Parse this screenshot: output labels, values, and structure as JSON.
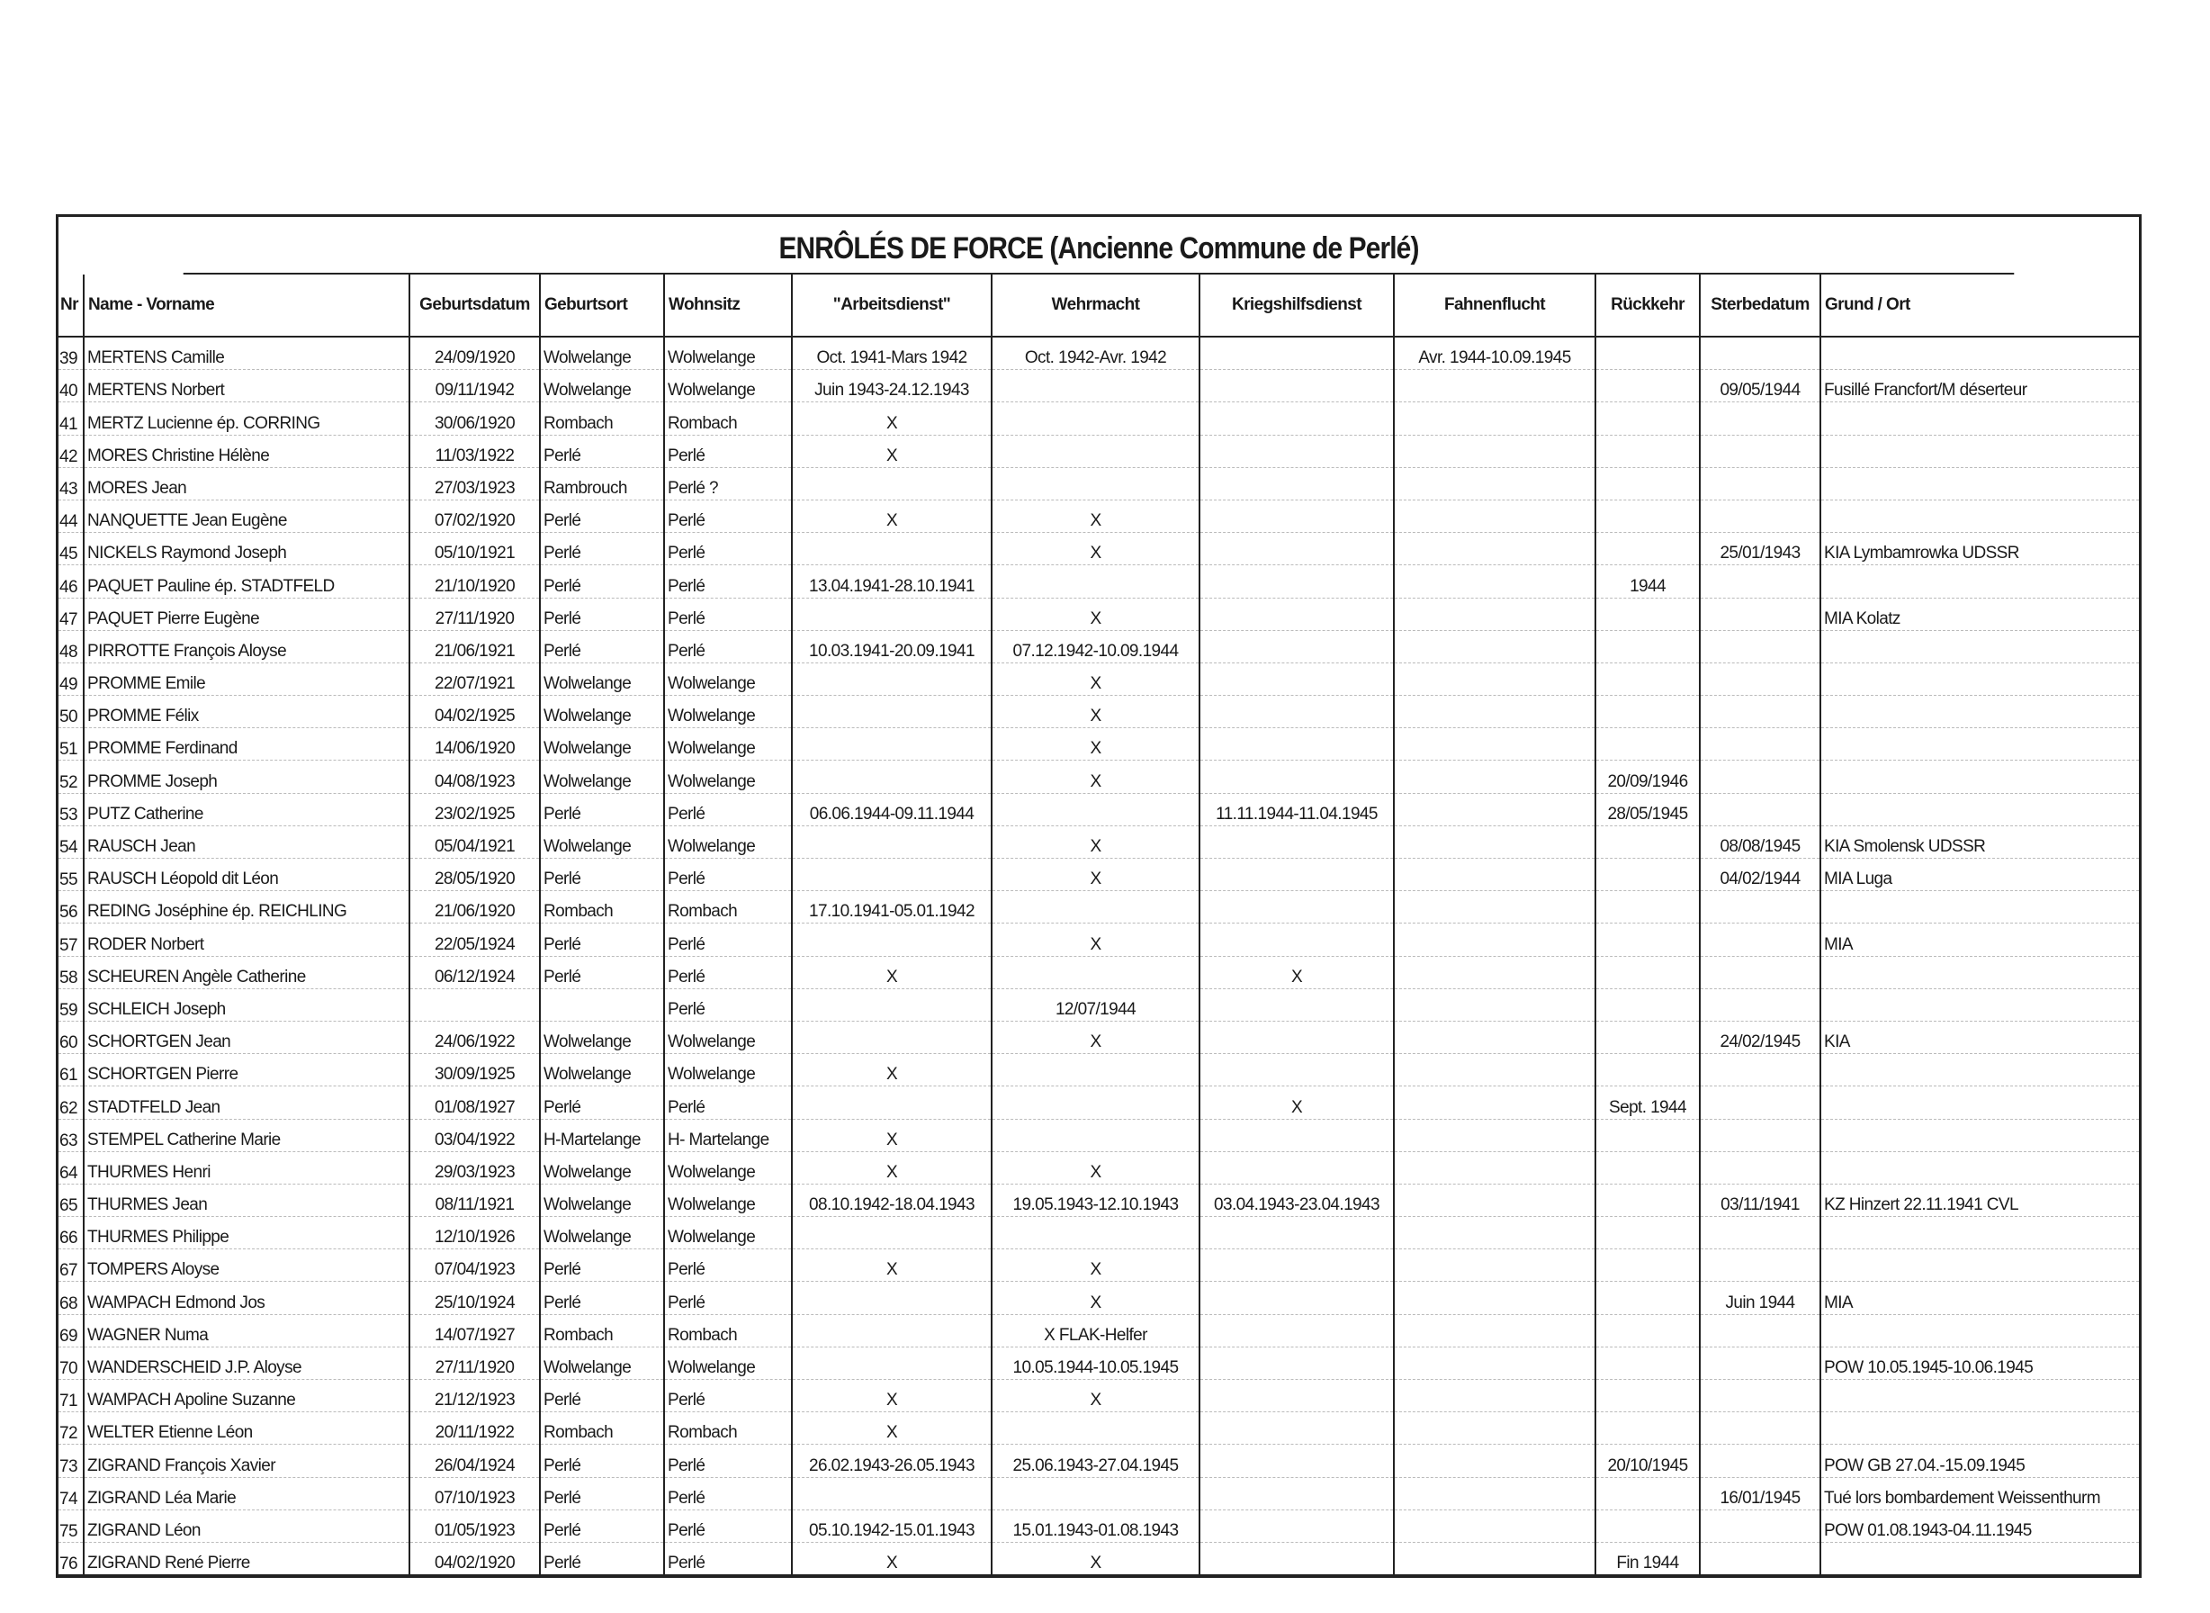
{
  "title": "ENRÔLÉS DE FORCE  (Ancienne Commune de Perlé)",
  "columns": [
    "Nr",
    "Name - Vorname",
    "Geburtsdatum",
    "Geburtsort",
    "Wohnsitz",
    "\"Arbeitsdienst\"",
    "Wehrmacht",
    "Kriegshilfsdienst",
    "Fahnenflucht",
    "Rückkehr",
    "Sterbedatum",
    "Grund / Ort"
  ],
  "rows": [
    [
      "39",
      "MERTENS Camille",
      "24/09/1920",
      "Wolwelange",
      "Wolwelange",
      "Oct. 1941-Mars 1942",
      "Oct. 1942-Avr. 1942",
      "",
      "Avr. 1944-10.09.1945",
      "",
      "",
      ""
    ],
    [
      "40",
      "MERTENS Norbert",
      "09/11/1942",
      "Wolwelange",
      "Wolwelange",
      "Juin 1943-24.12.1943",
      "",
      "",
      "",
      "",
      "09/05/1944",
      "Fusillé Francfort/M déserteur"
    ],
    [
      "41",
      "MERTZ Lucienne ép. CORRING",
      "30/06/1920",
      "Rombach",
      "Rombach",
      "X",
      "",
      "",
      "",
      "",
      "",
      ""
    ],
    [
      "42",
      "MORES Christine Hélène",
      "11/03/1922",
      "Perlé",
      "Perlé",
      "X",
      "",
      "",
      "",
      "",
      "",
      ""
    ],
    [
      "43",
      "MORES Jean",
      "27/03/1923",
      "Rambrouch",
      "Perlé ?",
      "",
      "",
      "",
      "",
      "",
      "",
      ""
    ],
    [
      "44",
      "NANQUETTE Jean Eugène",
      "07/02/1920",
      "Perlé",
      "Perlé",
      "X",
      "X",
      "",
      "",
      "",
      "",
      ""
    ],
    [
      "45",
      "NICKELS Raymond Joseph",
      "05/10/1921",
      "Perlé",
      "Perlé",
      "",
      "X",
      "",
      "",
      "",
      "25/01/1943",
      "KIA Lymbamrowka UDSSR"
    ],
    [
      "46",
      "PAQUET Pauline ép. STADTFELD",
      "21/10/1920",
      "Perlé",
      "Perlé",
      "13.04.1941-28.10.1941",
      "",
      "",
      "",
      "1944",
      "",
      ""
    ],
    [
      "47",
      "PAQUET Pierre Eugène",
      "27/11/1920",
      "Perlé",
      "Perlé",
      "",
      "X",
      "",
      "",
      "",
      "",
      "MIA Kolatz"
    ],
    [
      "48",
      "PIRROTTE François Aloyse",
      "21/06/1921",
      "Perlé",
      "Perlé",
      "10.03.1941-20.09.1941",
      "07.12.1942-10.09.1944",
      "",
      "",
      "",
      "",
      ""
    ],
    [
      "49",
      "PROMME Emile",
      "22/07/1921",
      "Wolwelange",
      "Wolwelange",
      "",
      "X",
      "",
      "",
      "",
      "",
      ""
    ],
    [
      "50",
      "PROMME Félix",
      "04/02/1925",
      "Wolwelange",
      "Wolwelange",
      "",
      "X",
      "",
      "",
      "",
      "",
      ""
    ],
    [
      "51",
      "PROMME Ferdinand",
      "14/06/1920",
      "Wolwelange",
      "Wolwelange",
      "",
      "X",
      "",
      "",
      "",
      "",
      ""
    ],
    [
      "52",
      "PROMME Joseph",
      "04/08/1923",
      "Wolwelange",
      "Wolwelange",
      "",
      "X",
      "",
      "",
      "20/09/1946",
      "",
      ""
    ],
    [
      "53",
      "PUTZ Catherine",
      "23/02/1925",
      "Perlé",
      "Perlé",
      "06.06.1944-09.11.1944",
      "",
      "11.11.1944-11.04.1945",
      "",
      "28/05/1945",
      "",
      ""
    ],
    [
      "54",
      "RAUSCH Jean",
      "05/04/1921",
      "Wolwelange",
      "Wolwelange",
      "",
      "X",
      "",
      "",
      "",
      "08/08/1945",
      "KIA Smolensk UDSSR"
    ],
    [
      "55",
      "RAUSCH Léopold dit Léon",
      "28/05/1920",
      "Perlé",
      "Perlé",
      "",
      "X",
      "",
      "",
      "",
      "04/02/1944",
      "MIA  Luga"
    ],
    [
      "56",
      "REDING Joséphine ép. REICHLING",
      "21/06/1920",
      "Rombach",
      "Rombach",
      "17.10.1941-05.01.1942",
      "",
      "",
      "",
      "",
      "",
      ""
    ],
    [
      "57",
      "RODER Norbert",
      "22/05/1924",
      "Perlé",
      "Perlé",
      "",
      "X",
      "",
      "",
      "",
      "",
      "MIA"
    ],
    [
      "58",
      "SCHEUREN Angèle Catherine",
      "06/12/1924",
      "Perlé",
      "Perlé",
      "X",
      "",
      "X",
      "",
      "",
      "",
      ""
    ],
    [
      "59",
      "SCHLEICH Joseph",
      "",
      "",
      "Perlé",
      "",
      "12/07/1944",
      "",
      "",
      "",
      "",
      ""
    ],
    [
      "60",
      "SCHORTGEN Jean",
      "24/06/1922",
      "Wolwelange",
      "Wolwelange",
      "",
      "X",
      "",
      "",
      "",
      "24/02/1945",
      "KIA"
    ],
    [
      "61",
      "SCHORTGEN Pierre",
      "30/09/1925",
      "Wolwelange",
      "Wolwelange",
      "X",
      "",
      "",
      "",
      "",
      "",
      ""
    ],
    [
      "62",
      "STADTFELD Jean",
      "01/08/1927",
      "Perlé",
      "Perlé",
      "",
      "",
      "X",
      "",
      "Sept. 1944",
      "",
      ""
    ],
    [
      "63",
      "STEMPEL Catherine Marie",
      "03/04/1922",
      "H-Martelange",
      "H- Martelange",
      "X",
      "",
      "",
      "",
      "",
      "",
      ""
    ],
    [
      "64",
      "THURMES Henri",
      "29/03/1923",
      "Wolwelange",
      "Wolwelange",
      "X",
      "X",
      "",
      "",
      "",
      "",
      ""
    ],
    [
      "65",
      "THURMES Jean",
      "08/11/1921",
      "Wolwelange",
      "Wolwelange",
      "08.10.1942-18.04.1943",
      "19.05.1943-12.10.1943",
      "03.04.1943-23.04.1943",
      "",
      "",
      "03/11/1941",
      "KZ Hinzert 22.11.1941 CVL"
    ],
    [
      "66",
      "THURMES Philippe",
      "12/10/1926",
      "Wolwelange",
      "Wolwelange",
      "",
      "",
      "",
      "",
      "",
      "",
      ""
    ],
    [
      "67",
      "TOMPERS Aloyse",
      "07/04/1923",
      "Perlé",
      "Perlé",
      "X",
      "X",
      "",
      "",
      "",
      "",
      ""
    ],
    [
      "68",
      "WAMPACH Edmond Jos",
      "25/10/1924",
      "Perlé",
      "Perlé",
      "",
      "X",
      "",
      "",
      "",
      "Juin 1944",
      "MIA"
    ],
    [
      "69",
      "WAGNER Numa",
      "14/07/1927",
      "Rombach",
      "Rombach",
      "",
      "X FLAK-Helfer",
      "",
      "",
      "",
      "",
      ""
    ],
    [
      "70",
      "WANDERSCHEID J.P. Aloyse",
      "27/11/1920",
      "Wolwelange",
      "Wolwelange",
      "",
      "10.05.1944-10.05.1945",
      "",
      "",
      "",
      "",
      "POW 10.05.1945-10.06.1945"
    ],
    [
      "71",
      "WAMPACH Apoline Suzanne",
      "21/12/1923",
      "Perlé",
      "Perlé",
      "X",
      "X",
      "",
      "",
      "",
      "",
      ""
    ],
    [
      "72",
      "WELTER Etienne Léon",
      "20/11/1922",
      "Rombach",
      "Rombach",
      "X",
      "",
      "",
      "",
      "",
      "",
      ""
    ],
    [
      "73",
      "ZIGRAND François Xavier",
      "26/04/1924",
      "Perlé",
      "Perlé",
      "26.02.1943-26.05.1943",
      "25.06.1943-27.04.1945",
      "",
      "",
      "20/10/1945",
      "",
      "POW GB 27.04.-15.09.1945"
    ],
    [
      "74",
      "ZIGRAND Léa Marie",
      "07/10/1923",
      "Perlé",
      "Perlé",
      "",
      "",
      "",
      "",
      "",
      "16/01/1945",
      "Tué lors bombardement Weissenthurm"
    ],
    [
      "75",
      "ZIGRAND Léon",
      "01/05/1923",
      "Perlé",
      "Perlé",
      "05.10.1942-15.01.1943",
      "15.01.1943-01.08.1943",
      "",
      "",
      "",
      "",
      "POW 01.08.1943-04.11.1945"
    ],
    [
      "76",
      "ZIGRAND René Pierre",
      "04/02/1920",
      "Perlé",
      "Perlé",
      "X",
      "X",
      "",
      "",
      "Fin 1944",
      "",
      ""
    ]
  ]
}
